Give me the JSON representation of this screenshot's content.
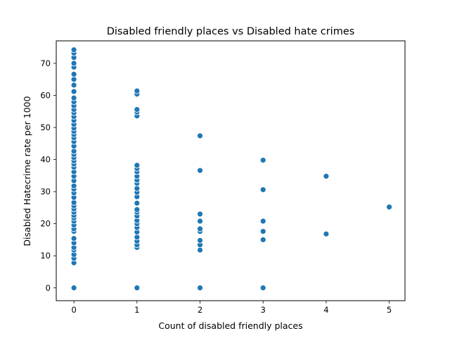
{
  "chart_data": {
    "type": "scatter",
    "title": "Disabled friendly places vs Disabled hate crimes",
    "xlabel": "Count of disabled friendly places",
    "ylabel": "Disabled Hatecrime rate per 1000",
    "xlim": [
      -0.28,
      5.25
    ],
    "ylim": [
      -4,
      77
    ],
    "xticks": [
      0,
      1,
      2,
      3,
      4,
      5
    ],
    "yticks": [
      0,
      10,
      20,
      30,
      40,
      50,
      60,
      70
    ],
    "grid": false,
    "marker_color": "#1f77b4",
    "points": [
      [
        0,
        0
      ],
      [
        0,
        7.8
      ],
      [
        0,
        9.2
      ],
      [
        0,
        10.4
      ],
      [
        0,
        11.8
      ],
      [
        0,
        12.6
      ],
      [
        0,
        14.0
      ],
      [
        0,
        15.4
      ],
      [
        0,
        17.6
      ],
      [
        0,
        18.4
      ],
      [
        0,
        19.6
      ],
      [
        0,
        20.8
      ],
      [
        0,
        21.8
      ],
      [
        0,
        22.6
      ],
      [
        0,
        23.6
      ],
      [
        0,
        24.6
      ],
      [
        0,
        25.6
      ],
      [
        0,
        26.6
      ],
      [
        0,
        28.2
      ],
      [
        0,
        29.6
      ],
      [
        0,
        30.8
      ],
      [
        0,
        31.8
      ],
      [
        0,
        33.4
      ],
      [
        0,
        34.8
      ],
      [
        0,
        36.2
      ],
      [
        0,
        37.6
      ],
      [
        0,
        38.6
      ],
      [
        0,
        39.6
      ],
      [
        0,
        40.6
      ],
      [
        0,
        41.6
      ],
      [
        0,
        42.6
      ],
      [
        0,
        44.2
      ],
      [
        0,
        45.6
      ],
      [
        0,
        46.8
      ],
      [
        0,
        47.8
      ],
      [
        0,
        48.8
      ],
      [
        0,
        49.8
      ],
      [
        0,
        51.0
      ],
      [
        0,
        52.2
      ],
      [
        0,
        53.4
      ],
      [
        0,
        54.6
      ],
      [
        0,
        55.6
      ],
      [
        0,
        56.8
      ],
      [
        0,
        58.0
      ],
      [
        0,
        59.2
      ],
      [
        0,
        61.2
      ],
      [
        0,
        63.2
      ],
      [
        0,
        65.0
      ],
      [
        0,
        66.6
      ],
      [
        0,
        68.8
      ],
      [
        0,
        70.0
      ],
      [
        0,
        71.8
      ],
      [
        0,
        73.2
      ],
      [
        0,
        74.2
      ],
      [
        1,
        0
      ],
      [
        1,
        12.6
      ],
      [
        1,
        13.4
      ],
      [
        1,
        14.6
      ],
      [
        1,
        15.8
      ],
      [
        1,
        17.4
      ],
      [
        1,
        18.8
      ],
      [
        1,
        20.0
      ],
      [
        1,
        21.0
      ],
      [
        1,
        22.4
      ],
      [
        1,
        23.6
      ],
      [
        1,
        24.4
      ],
      [
        1,
        26.4
      ],
      [
        1,
        28.4
      ],
      [
        1,
        29.8
      ],
      [
        1,
        31.0
      ],
      [
        1,
        32.6
      ],
      [
        1,
        33.6
      ],
      [
        1,
        34.8
      ],
      [
        1,
        36.2
      ],
      [
        1,
        37.2
      ],
      [
        1,
        38.2
      ],
      [
        1,
        53.6
      ],
      [
        1,
        54.8
      ],
      [
        1,
        55.6
      ],
      [
        1,
        60.4
      ],
      [
        1,
        61.4
      ],
      [
        2,
        0
      ],
      [
        2,
        11.8
      ],
      [
        2,
        13.4
      ],
      [
        2,
        14.8
      ],
      [
        2,
        17.6
      ],
      [
        2,
        18.4
      ],
      [
        2,
        20.8
      ],
      [
        2,
        23.0
      ],
      [
        2,
        36.6
      ],
      [
        2,
        47.4
      ],
      [
        3,
        0
      ],
      [
        3,
        15.0
      ],
      [
        3,
        17.6
      ],
      [
        3,
        20.8
      ],
      [
        3,
        30.6
      ],
      [
        3,
        39.8
      ],
      [
        4,
        16.8
      ],
      [
        4,
        34.8
      ],
      [
        5,
        25.2
      ]
    ]
  }
}
